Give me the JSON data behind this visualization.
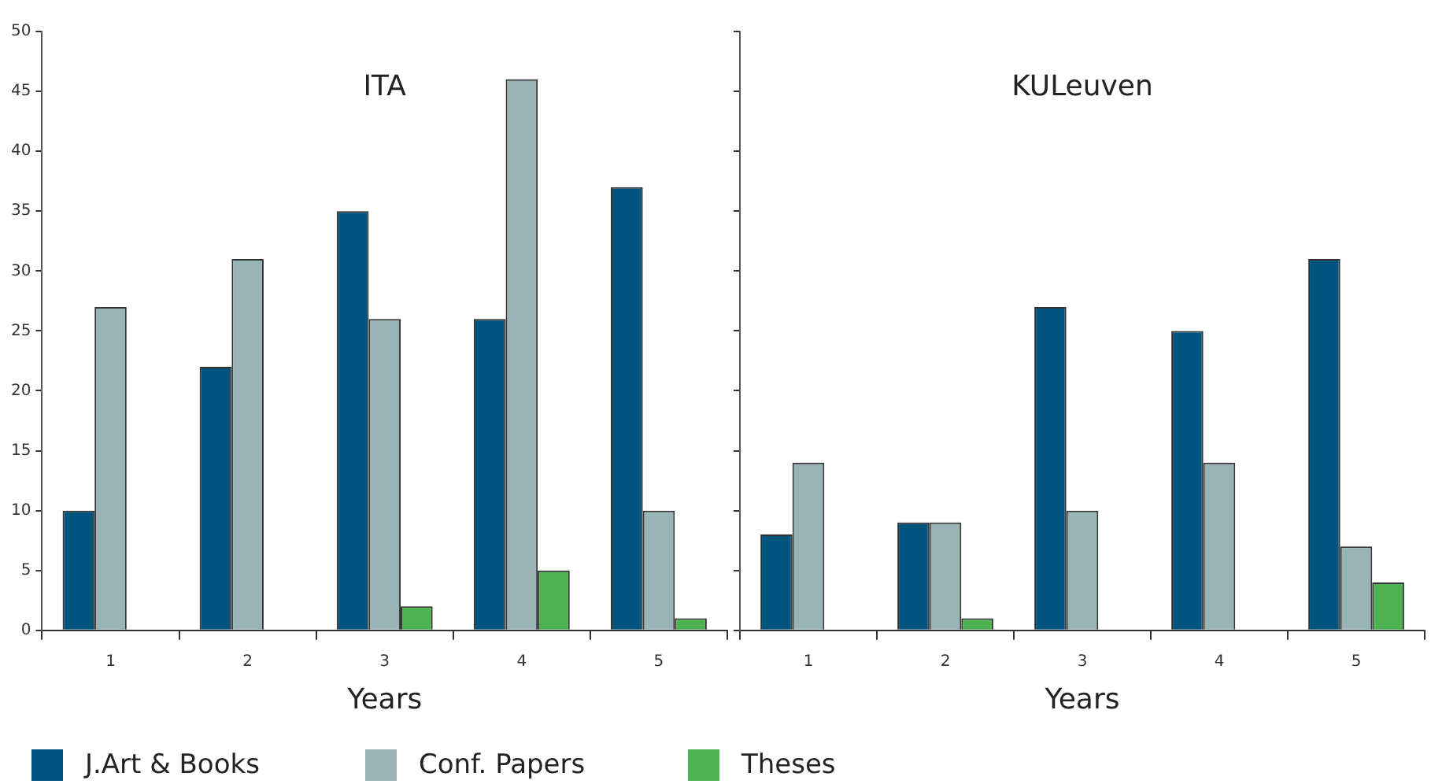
{
  "chart_data": [
    {
      "type": "bar",
      "title": "ITA",
      "xlabel": "Years",
      "categories": [
        "1",
        "2",
        "3",
        "4",
        "5"
      ],
      "ylim": [
        0,
        50
      ],
      "yticks": [
        0,
        5,
        10,
        15,
        20,
        25,
        30,
        35,
        40,
        45,
        50
      ],
      "legend": "bottom",
      "series": [
        {
          "name": "J.Art & Books",
          "color": "#00557f",
          "values": [
            10,
            22,
            35,
            26,
            37
          ]
        },
        {
          "name": "Conf. Papers",
          "color": "#99b4b6",
          "values": [
            27,
            31,
            26,
            46,
            10
          ]
        },
        {
          "name": "Theses",
          "color": "#4db351",
          "values": [
            0,
            0,
            2,
            5,
            1
          ]
        }
      ]
    },
    {
      "type": "bar",
      "title": "KULeuven",
      "xlabel": "Years",
      "categories": [
        "1",
        "2",
        "3",
        "4",
        "5"
      ],
      "ylim": [
        0,
        50
      ],
      "yticks": [
        0,
        5,
        10,
        15,
        20,
        25,
        30,
        35,
        40,
        45,
        50
      ],
      "tick_labels": "x",
      "series": [
        {
          "color": "#00557f",
          "values": [
            8,
            9,
            27,
            25,
            31
          ]
        },
        {
          "color": "#99b4b6",
          "values": [
            14,
            9,
            10,
            14,
            7
          ]
        },
        {
          "color": "#4db351",
          "values": [
            0,
            1,
            0,
            0,
            4
          ]
        }
      ]
    }
  ]
}
